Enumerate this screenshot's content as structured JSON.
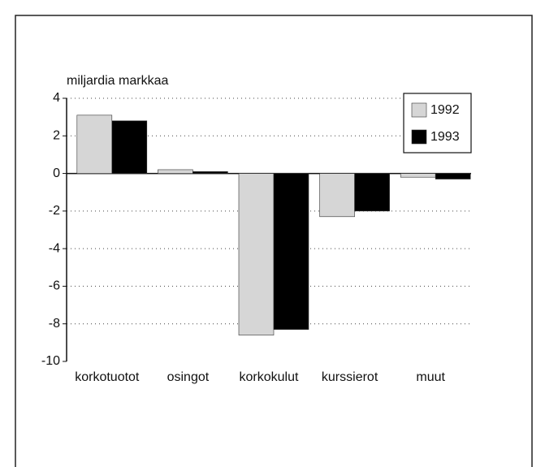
{
  "chart_data": {
    "type": "bar",
    "ylabel": "miljardia markkaa",
    "categories": [
      "korkotuotot",
      "osingot",
      "korkokulut",
      "kurssierot",
      "muut"
    ],
    "series": [
      {
        "name": "1992",
        "color": "#d6d6d6",
        "values": [
          3.1,
          0.2,
          -8.6,
          -2.3,
          -0.2
        ]
      },
      {
        "name": "1993",
        "color": "#000000",
        "values": [
          2.8,
          0.1,
          -8.3,
          -2.0,
          -0.3
        ]
      }
    ],
    "ylim": [
      -10,
      4
    ],
    "yticks": [
      4,
      2,
      0,
      -2,
      -4,
      -6,
      -8,
      -10
    ],
    "grid": true,
    "legend": "upper right"
  }
}
